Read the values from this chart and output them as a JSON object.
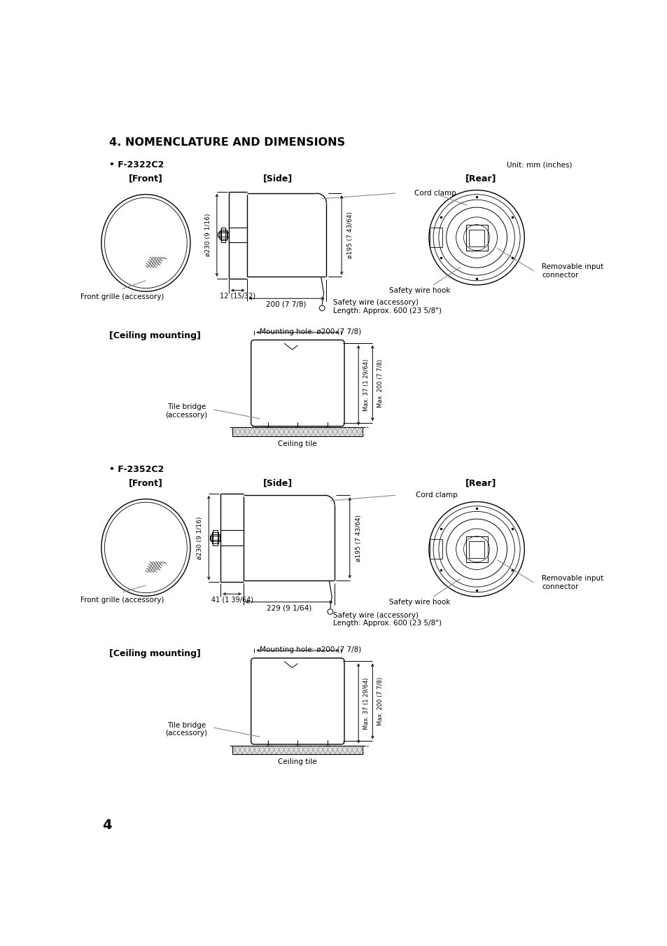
{
  "title": "4. NOMENCLATURE AND DIMENSIONS",
  "page_number": "4",
  "bg": "#ffffff",
  "lc": "#000000",
  "tc": "#000000",
  "gray": "#888888",
  "lightgray": "#cccccc",
  "s1_model": "• F-2322C2",
  "s2_model": "• F-2352C2",
  "unit_text": "Unit: mm (inches)",
  "lbl_front": "[Front]",
  "lbl_side": "[Side]",
  "lbl_rear": "[Rear]",
  "lbl_ceiling": "[Ceiling mounting]",
  "lbl_front_grille": "Front grille (accessory)",
  "lbl_cord_clamp": "Cord clamp",
  "lbl_safety_hook": "Safety wire hook",
  "lbl_removable": "Removable input\nconnector",
  "lbl_safety_wire": "Safety wire (accessory)\nLength: Approx. 600 (23 5/8\")",
  "lbl_mounting_hole": "Mounting hole: ø200 (7 7/8)",
  "lbl_tile_bridge": "Tile bridge\n(accessory)",
  "lbl_ceiling_tile": "Ceiling tile",
  "d1_phi230": "ø230 (9 1/16)",
  "d1_phi195": "ø195 (7 43/64)",
  "d1_12": "12 (15/32)",
  "d1_200": "200 (7 7/8)",
  "d1_max37": "Max. 37 (1 29/64)",
  "d1_max200": "Max. 200 (7 7/8)",
  "d2_phi230": "ø230 (9 1/16)",
  "d2_phi195": "ø195 (7 43/64)",
  "d2_41": "41 (1 39/64)",
  "d2_229": "229 (9 1/64)",
  "d2_max37": "Max. 37 (1 29/64)",
  "d2_max200": "Max. 200 (7 7/8)"
}
